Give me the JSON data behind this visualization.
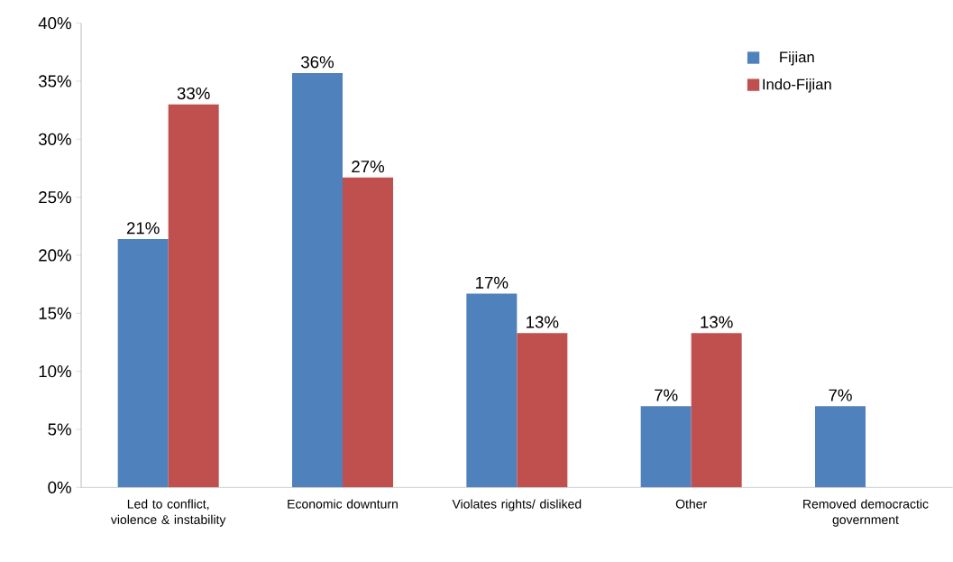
{
  "chart_data": {
    "type": "bar",
    "categories": [
      "Led to conflict, violence & instability",
      "Economic downturn",
      "Violates rights/ disliked",
      "Other",
      "Removed democractic government"
    ],
    "series": [
      {
        "name": "Fijian",
        "color": "#4f81bd",
        "values": [
          21.4,
          35.7,
          16.7,
          7,
          7
        ],
        "value_labels": [
          "21%",
          "36%",
          "17%",
          "7%",
          "7%"
        ]
      },
      {
        "name": "Indo-Fijian",
        "color": "#c0504d",
        "values": [
          33,
          26.7,
          13.3,
          13.3,
          null
        ],
        "value_labels": [
          "33%",
          "27%",
          "13%",
          "13%",
          null
        ]
      }
    ],
    "ylim": [
      0,
      40
    ],
    "yticks": [
      {
        "value": 0,
        "label": "0%"
      },
      {
        "value": 5,
        "label": "5%"
      },
      {
        "value": 10,
        "label": "10%"
      },
      {
        "value": 15,
        "label": "15%"
      },
      {
        "value": 20,
        "label": "20%"
      },
      {
        "value": 25,
        "label": "25%"
      },
      {
        "value": 30,
        "label": "30%"
      },
      {
        "value": 35,
        "label": "35%"
      },
      {
        "value": 40,
        "label": "40%"
      }
    ],
    "legend": "top right"
  }
}
